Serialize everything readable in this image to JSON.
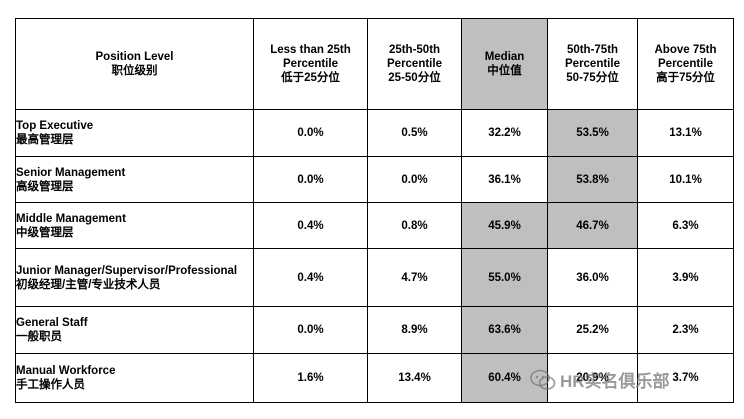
{
  "table": {
    "headers": [
      {
        "en": "Position Level",
        "zh": "职位级别"
      },
      {
        "en": "Less than 25th Percentile",
        "zh": "低于25分位"
      },
      {
        "en": "25th-50th Percentile",
        "zh": "25-50分位"
      },
      {
        "en": "Median",
        "zh": "中位值"
      },
      {
        "en": "50th-75th Percentile",
        "zh": "50-75分位"
      },
      {
        "en": "Above 75th Percentile",
        "zh": "高于75分位"
      }
    ],
    "rows": [
      {
        "en": "Top  Executive",
        "zh": "最高管理层",
        "values": [
          "0.0%",
          "0.5%",
          "32.2%",
          "53.5%",
          "13.1%"
        ]
      },
      {
        "en": "Senior Management",
        "zh": "高级管理层",
        "values": [
          "0.0%",
          "0.0%",
          "36.1%",
          "53.8%",
          "10.1%"
        ]
      },
      {
        "en": "Middle Management",
        "zh": "中级管理层",
        "values": [
          "0.4%",
          "0.8%",
          "45.9%",
          "46.7%",
          "6.3%"
        ]
      },
      {
        "en": "Junior Manager/Supervisor/Professional",
        "zh": "初级经理/主管/专业技术人员",
        "values": [
          "0.4%",
          "4.7%",
          "55.0%",
          "36.0%",
          "3.9%"
        ]
      },
      {
        "en": "General Staff",
        "zh": "一般职员",
        "values": [
          "0.0%",
          "8.9%",
          "63.6%",
          "25.2%",
          "2.3%"
        ]
      },
      {
        "en": "Manual Workforce",
        "zh": "手工操作人员",
        "values": [
          "1.6%",
          "13.4%",
          "60.4%",
          "20.9%",
          "3.7%"
        ]
      }
    ],
    "shade_color": "#bfbfbf"
  },
  "watermark": {
    "text": "HR实名俱乐部",
    "icon": "wechat-icon"
  }
}
